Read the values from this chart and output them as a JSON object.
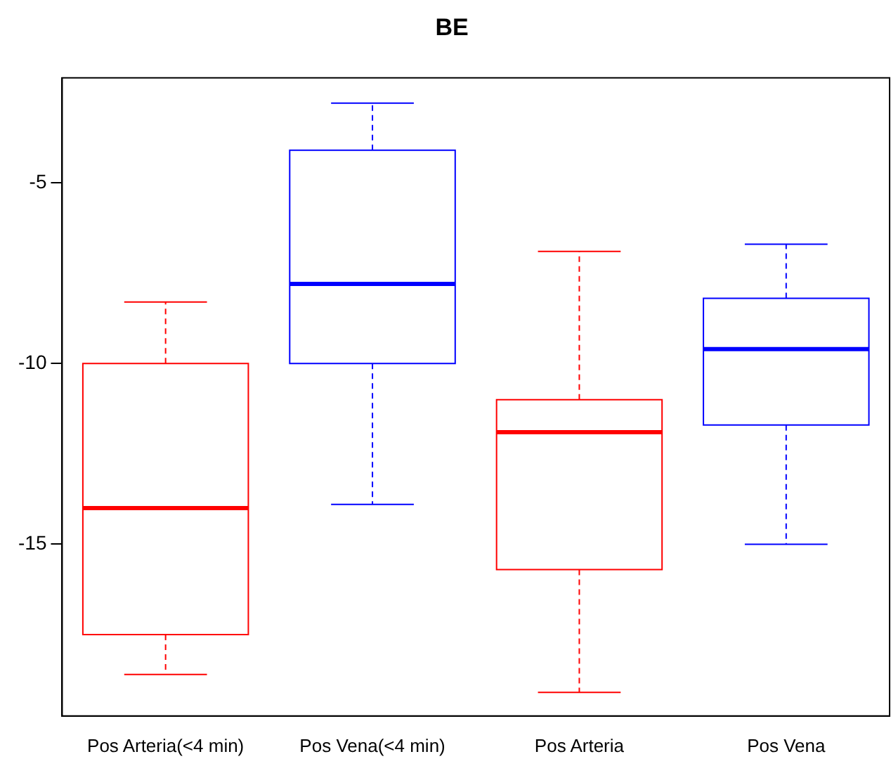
{
  "chart_data": {
    "type": "box",
    "title": "BE",
    "categories": [
      "Pos Arteria(<4 min)",
      "Pos Vena(<4 min)",
      "Pos Arteria",
      "Pos Vena"
    ],
    "colors": [
      "#ff0000",
      "#0000ff",
      "#ff0000",
      "#0000ff"
    ],
    "boxes": [
      {
        "low": -18.6,
        "q1": -17.5,
        "median": -14,
        "q3": -10,
        "high": -8.3
      },
      {
        "low": -13.9,
        "q1": -10,
        "median": -7.8,
        "q3": -4.1,
        "high": -2.8
      },
      {
        "low": -19.1,
        "q1": -15.7,
        "median": -11.9,
        "q3": -11,
        "high": -6.9
      },
      {
        "low": -15,
        "q1": -11.7,
        "median": -9.6,
        "q3": -8.2,
        "high": -6.7
      }
    ],
    "ylim": [
      -19.75,
      -2.1
    ],
    "yticks": [
      -15,
      -10,
      -5
    ],
    "grid": false
  }
}
